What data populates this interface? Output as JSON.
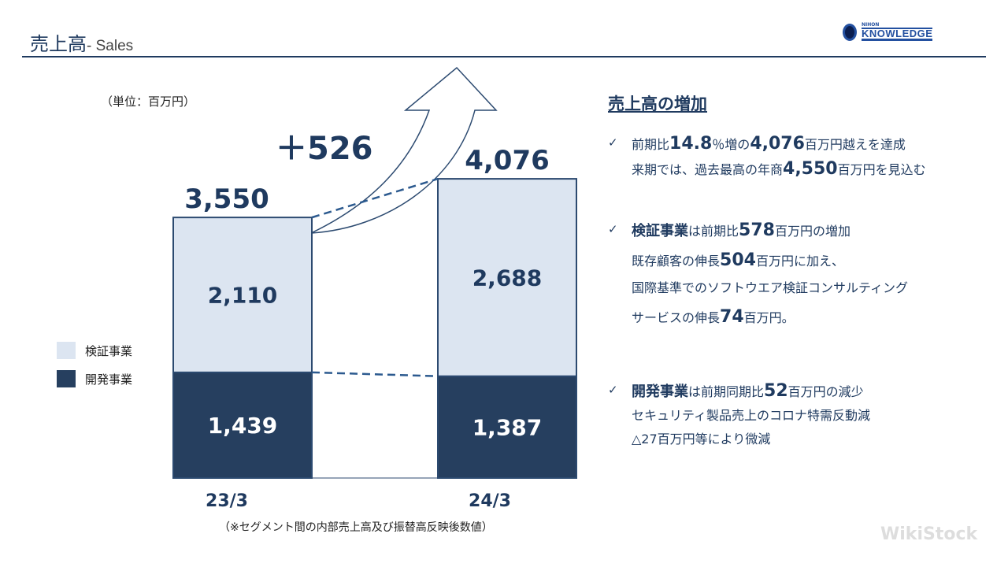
{
  "header": {
    "title": "売上高",
    "subtitle": "- Sales",
    "logo_small": "NIHON",
    "logo_text": "KNOWLEDGE"
  },
  "unit_label": "（単位：百万円）",
  "increase_label": "＋526",
  "chart_data": {
    "type": "bar",
    "stacked": true,
    "categories": [
      "23/3",
      "24/3"
    ],
    "series": [
      {
        "name": "開発事業",
        "values": [
          1439,
          1387
        ],
        "color": "#263f5f"
      },
      {
        "name": "検証事業",
        "values": [
          2110,
          2688
        ],
        "color": "#dce5f1"
      }
    ],
    "totals": [
      "3,550",
      "4,076"
    ],
    "segment_labels": [
      [
        "1,439",
        "2,110"
      ],
      [
        "1,387",
        "2,688"
      ]
    ],
    "legend_position": "left"
  },
  "legend": [
    {
      "label": "検証事業",
      "color": "#dce5f1"
    },
    {
      "label": "開発事業",
      "color": "#263f5f"
    }
  ],
  "footnote": "（※セグメント間の内部売上高及び振替高反映後数値）",
  "right": {
    "heading": "売上高の増加",
    "check": "✓",
    "b1": {
      "l1a": "前期比",
      "l1b": "14.8",
      "l1c": "％増の",
      "l1d": "4,076",
      "l1e": "百万円越えを達成",
      "l2a": "来期では、過去最高の年商",
      "l2b": "4,550",
      "l2c": "百万円を見込む"
    },
    "b2": {
      "l1a": "検証事業",
      "l1b": "は前期比",
      "l1c": "578",
      "l1d": "百万円の増加",
      "l2a": "既存顧客の伸長",
      "l2b": "504",
      "l2c": "百万円に加え、",
      "l3": "国際基準でのソフトウエア検証コンサルティング",
      "l4a": "サービスの伸長",
      "l4b": "74",
      "l4c": "百万円。"
    },
    "b3": {
      "l1a": "開発事業",
      "l1b": "は前期同期比",
      "l1c": "52",
      "l1d": "百万円の減少",
      "l2": "セキュリティ製品売上のコロナ特需反動減",
      "l3": "△27百万円等により微減"
    }
  },
  "watermark": "WikiStock"
}
